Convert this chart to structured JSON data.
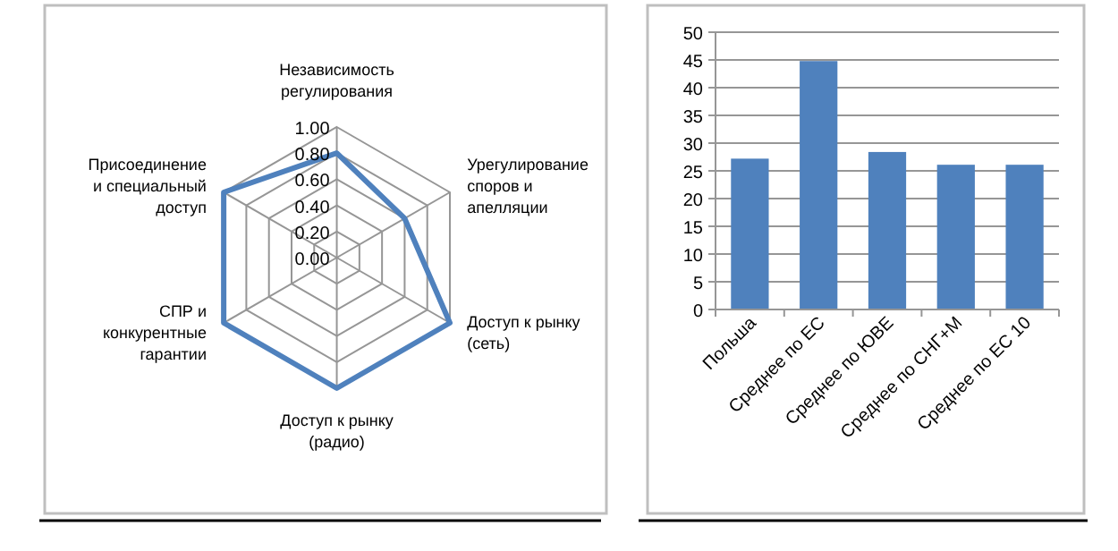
{
  "chart_data": [
    {
      "type": "radar",
      "categories": [
        "Независимость регулирования",
        "Урегулирование споров и апелляции",
        "Доступ к рынку (сеть)",
        "Доступ к рынку (радио)",
        "СПР и конкурентные гарантии",
        "Присоединение и специальный доступ"
      ],
      "series": [
        {
          "color": "#4f81bd",
          "values": [
            0.8,
            0.6,
            1.0,
            1.0,
            1.0,
            1.0
          ]
        }
      ],
      "ylim": [
        0,
        1
      ],
      "yticks": [
        {
          "value": 0,
          "label": "0.00"
        },
        {
          "value": 0.2,
          "label": "0.20"
        },
        {
          "value": 0.4,
          "label": "0.40"
        },
        {
          "value": 0.6,
          "label": "0.60"
        },
        {
          "value": 0.8,
          "label": "0.80"
        },
        {
          "value": 1,
          "label": "1.00"
        }
      ],
      "grid": true,
      "marker": "none"
    },
    {
      "type": "bar",
      "categories": [
        "Польша",
        "Среднее по ЕС",
        "Среднее по ЮВЕ",
        "Среднее по СНГ+М",
        "Среднее по ЕС 10"
      ],
      "values": [
        27.2,
        44.8,
        28.4,
        26.1,
        26.1
      ],
      "color": "#4f81bd",
      "ylim": [
        0,
        50
      ],
      "yticks": [
        0,
        5,
        10,
        15,
        20,
        25,
        30,
        35,
        40,
        45,
        50
      ],
      "grid": "y"
    }
  ]
}
